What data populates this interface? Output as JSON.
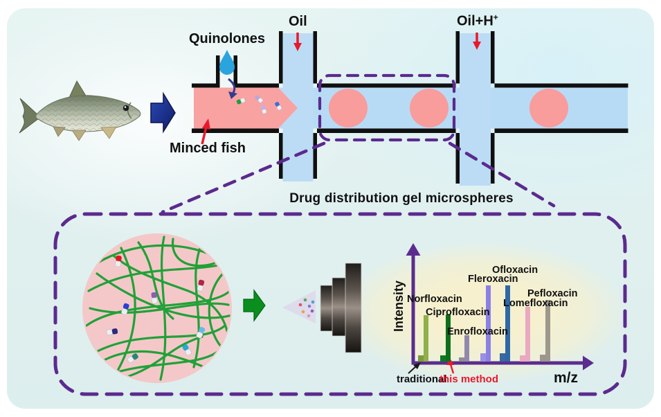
{
  "labels": {
    "quinolones": "Quinolones",
    "oil": "Oil",
    "oil_h": "Oil+H",
    "oil_h_sup": "+",
    "minced_fish": "Minced fish",
    "caption": "Drug distribution gel microspheres",
    "intensity": "Intensity",
    "mz": "m/z",
    "traditional": "traditional",
    "this_method": "this method"
  },
  "colors": {
    "dash_purple": "#5b2a8e",
    "axis_purple": "#5b2d8e",
    "channel_pink": "#f9a2a2",
    "droplet_pink": "#f89c9c",
    "channel_blue": "#b8dbf5",
    "wall_black": "#101010",
    "microsphere_pink": "#f4c8c9",
    "fiber_green": "#21a138",
    "arrow_red": "#e8192c",
    "arrow_navy": "#1b2f8f",
    "arrow_green": "#0a8f1f",
    "water_drop_blue": "#2aa4de",
    "glow_yellow": "#f7f0cd"
  },
  "chart_data": {
    "type": "bar",
    "title": "",
    "xlabel": "m/z",
    "ylabel": "Intensity",
    "categories": [
      "Norfloxacin",
      "Ciprofloxacin",
      "Enrofloxacin",
      "Fleroxacin",
      "Ofloxacin",
      "Lomefloxacin",
      "Pefloxacin"
    ],
    "series": [
      {
        "name": "traditional",
        "values": [
          9,
          9,
          6,
          12,
          12,
          9,
          10
        ]
      },
      {
        "name": "this method",
        "values": [
          67,
          68,
          38,
          110,
          110,
          79,
          89
        ]
      }
    ],
    "category_colors": [
      [
        "#7c9a3e",
        "#8fb04a"
      ],
      [
        "#0b7a20",
        "#0e6e1d"
      ],
      [
        "#8f8d98",
        "#9189ac"
      ],
      [
        "#9a90e2",
        "#8b80e6"
      ],
      [
        "#39699e",
        "#2e68a6"
      ],
      [
        "#e9aabe",
        "#eaa8c1"
      ],
      [
        "#9c968c",
        "#9d978c"
      ]
    ],
    "axis_color": "#5b2d8e",
    "legend_position": "none",
    "grid": false,
    "note": "mass-spectrum style peaks; y axis unlabeled, values are relative bar heights in px"
  }
}
